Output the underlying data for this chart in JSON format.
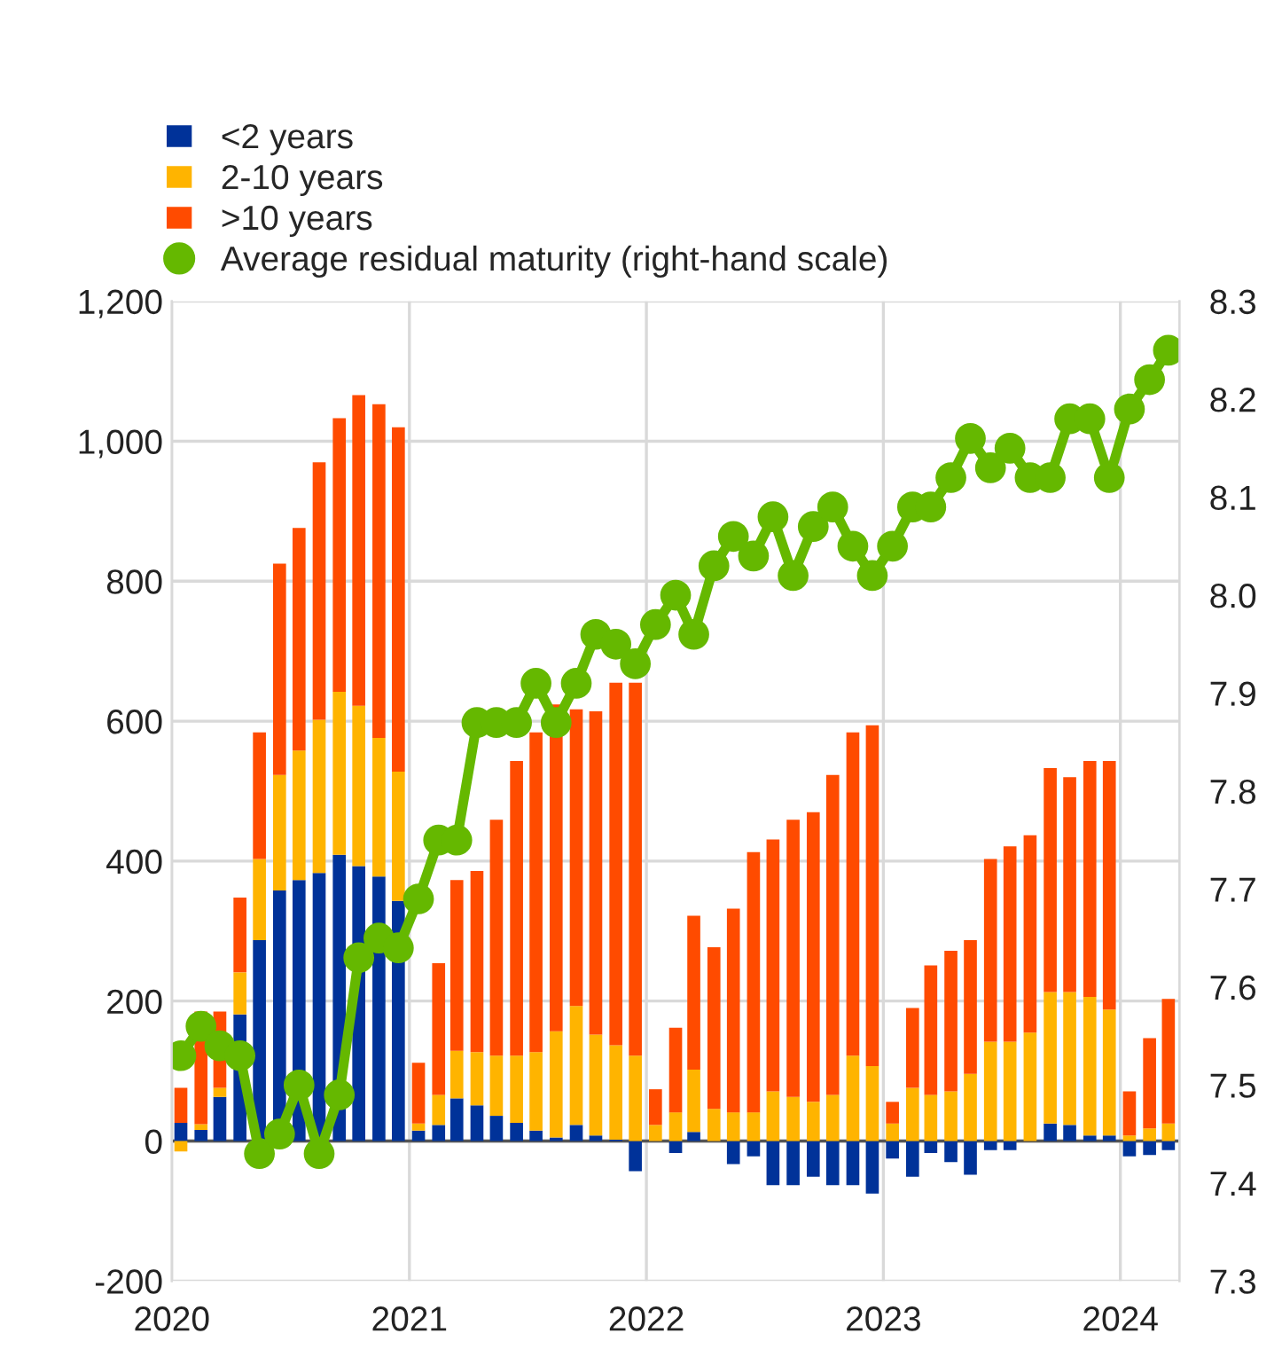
{
  "chart_data": {
    "type": "bar",
    "stacked": true,
    "x": [
      "2020-01-15",
      "2020-02-15",
      "2020-03-15",
      "2020-04-15",
      "2020-05-15",
      "2020-06-15",
      "2020-07-15",
      "2020-08-15",
      "2020-09-15",
      "2020-10-15",
      "2020-11-15",
      "2020-12-15",
      "2021-01-15",
      "2021-02-15",
      "2021-03-15",
      "2021-04-15",
      "2021-05-15",
      "2021-06-15",
      "2021-07-15",
      "2021-08-15",
      "2021-09-15",
      "2021-10-15",
      "2021-11-15",
      "2021-12-15",
      "2022-01-15",
      "2022-02-15",
      "2022-03-15",
      "2022-04-15",
      "2022-05-15",
      "2022-06-15",
      "2022-07-15",
      "2022-08-15",
      "2022-09-15",
      "2022-10-15",
      "2022-11-15",
      "2022-12-15",
      "2023-01-15",
      "2023-02-15",
      "2023-03-15",
      "2023-04-15",
      "2023-05-15",
      "2023-06-15",
      "2023-07-15",
      "2023-08-15",
      "2023-09-15",
      "2023-10-15",
      "2023-11-15",
      "2023-12-15",
      "2024-01-15",
      "2024-02-15",
      "2024-03-15"
    ],
    "series": [
      {
        "name": "<2 years",
        "color": "#003299",
        "values": [
          26,
          16,
          63,
          181,
          287,
          358,
          373,
          383,
          409,
          393,
          378,
          343,
          15,
          23,
          61,
          51,
          36,
          26,
          15,
          5,
          23,
          8,
          2,
          -43,
          0,
          -17,
          13,
          0,
          -33,
          -22,
          -63,
          -63,
          -51,
          -63,
          -63,
          -75,
          -25,
          -51,
          -17,
          -30,
          -48,
          -13,
          -13,
          0,
          25,
          23,
          8,
          8,
          -22,
          -20,
          -13
        ]
      },
      {
        "name": "2-10 years",
        "color": "#ffb400",
        "values": [
          -15,
          8,
          13,
          60,
          116,
          165,
          185,
          219,
          233,
          229,
          198,
          185,
          10,
          43,
          68,
          76,
          86,
          96,
          112,
          152,
          170,
          144,
          135,
          122,
          23,
          41,
          89,
          46,
          41,
          41,
          71,
          63,
          56,
          66,
          122,
          107,
          25,
          76,
          66,
          71,
          96,
          142,
          142,
          155,
          188,
          190,
          198,
          180,
          8,
          18,
          25
        ]
      },
      {
        "name": ">10 years",
        "color": "#ff4b00",
        "values": [
          50,
          161,
          109,
          107,
          181,
          302,
          318,
          368,
          391,
          444,
          477,
          492,
          87,
          188,
          244,
          259,
          337,
          421,
          457,
          467,
          424,
          462,
          518,
          533,
          51,
          121,
          220,
          231,
          291,
          372,
          360,
          396,
          414,
          457,
          462,
          487,
          31,
          114,
          185,
          201,
          191,
          261,
          279,
          282,
          320,
          307,
          337,
          355,
          63,
          129,
          178
        ]
      },
      {
        "name": "Average residual maturity (right-hand scale)",
        "color": "#65b800",
        "type": "line",
        "axis": "y2",
        "marker": "circle",
        "values": [
          7.53,
          7.56,
          7.54,
          7.53,
          7.43,
          7.45,
          7.5,
          7.43,
          7.49,
          7.63,
          7.65,
          7.64,
          7.69,
          7.75,
          7.75,
          7.87,
          7.87,
          7.87,
          7.91,
          7.87,
          7.91,
          7.96,
          7.95,
          7.93,
          7.97,
          8.0,
          7.96,
          8.03,
          8.06,
          8.04,
          8.08,
          8.02,
          8.07,
          8.09,
          8.05,
          8.02,
          8.05,
          8.09,
          8.09,
          8.12,
          8.16,
          8.13,
          8.15,
          8.12,
          8.12,
          8.18,
          8.18,
          8.12,
          8.19,
          8.22,
          8.25
        ]
      }
    ],
    "xlim": [
      "2020-01-01",
      "2024-04-01"
    ],
    "xticks": [
      {
        "value": "2020-01-01",
        "label": "2020"
      },
      {
        "value": "2021-01-01",
        "label": "2021"
      },
      {
        "value": "2022-01-01",
        "label": "2022"
      },
      {
        "value": "2023-01-01",
        "label": "2023"
      },
      {
        "value": "2024-01-01",
        "label": "2024"
      }
    ],
    "ylim": [
      -200,
      1200
    ],
    "yticks": [
      -200,
      0,
      200,
      400,
      {
        "value": 1000,
        "label": "1,000"
      },
      600,
      800,
      {
        "value": 1200,
        "label": "1,200"
      }
    ],
    "y2lim": [
      7.3,
      8.3
    ],
    "y2ticks": [
      7.3,
      7.4,
      7.5,
      7.6,
      7.7,
      7.8,
      7.9,
      {
        "value": 8,
        "label": "8.0"
      },
      8.1,
      8.2,
      8.3
    ],
    "grid": true,
    "legend": "top left"
  }
}
